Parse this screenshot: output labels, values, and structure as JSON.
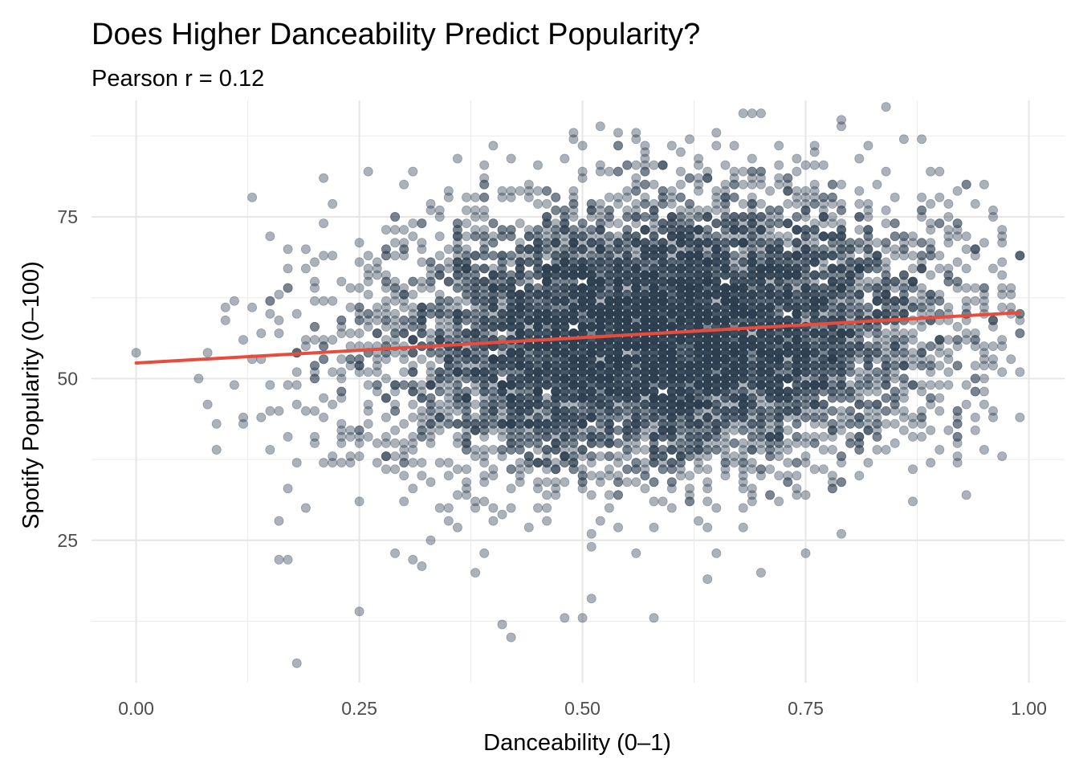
{
  "chart_data": {
    "type": "scatter",
    "title": "Does Higher Danceability Predict Popularity?",
    "subtitle": "Pearson r = 0.12",
    "xlabel": "Danceability (0–1)",
    "ylabel": "Spotify Popularity (0–100)",
    "xlim": [
      -0.05,
      1.04
    ],
    "ylim": [
      3,
      93
    ],
    "x_ticks": [
      0.0,
      0.25,
      0.5,
      0.75,
      1.0
    ],
    "x_tick_labels": [
      "0.00",
      "0.25",
      "0.50",
      "0.75",
      "1.00"
    ],
    "y_ticks": [
      25,
      50,
      75
    ],
    "y_tick_labels": [
      "25",
      "50",
      "75"
    ],
    "grid": true,
    "point_color": "#2c3e50",
    "point_opacity": 0.4,
    "trend_color": "#e74c3c",
    "trend_line": {
      "x": [
        0.0,
        0.99
      ],
      "y": [
        52.4,
        60.2
      ]
    },
    "points": {
      "x": [
        0.0,
        0.07,
        0.08,
        0.09,
        0.1,
        0.11,
        0.11,
        0.12,
        0.13,
        0.13,
        0.15,
        0.15,
        0.16,
        0.16,
        0.16,
        0.17,
        0.17,
        0.18,
        0.18,
        0.19,
        0.2,
        0.2,
        0.21,
        0.21,
        0.22,
        0.23,
        0.25,
        0.25,
        0.26,
        0.27,
        0.29,
        0.3,
        0.31,
        0.32,
        0.36,
        0.38,
        0.41,
        0.42,
        0.48,
        0.5,
        0.51,
        0.58,
        0.6,
        0.64,
        0.68,
        0.7,
        0.75,
        0.79,
        0.84,
        0.86,
        0.93,
        0.96,
        0.98,
        0.99,
        0.99,
        0.97,
        0.95
      ],
      "y": [
        54,
        50,
        46,
        39,
        61,
        62,
        49,
        44,
        61,
        53,
        39,
        72,
        22,
        28,
        45,
        22,
        33,
        6,
        51,
        67,
        40,
        58,
        81,
        56,
        77,
        65,
        14,
        61,
        82,
        37,
        23,
        31,
        82,
        21,
        84,
        20,
        12,
        10,
        13,
        13,
        16,
        13,
        86,
        19,
        91,
        20,
        23,
        26,
        92,
        87,
        80,
        55,
        60,
        57,
        44,
        38,
        46
      ]
    },
    "cloud": {
      "n": 7600,
      "x_mean": 0.59,
      "x_sd": 0.155,
      "x_range": [
        0.0,
        0.99
      ],
      "y_mean": 57,
      "y_sd": 10.2,
      "y_range": [
        5,
        92
      ],
      "r": 0.12
    }
  }
}
